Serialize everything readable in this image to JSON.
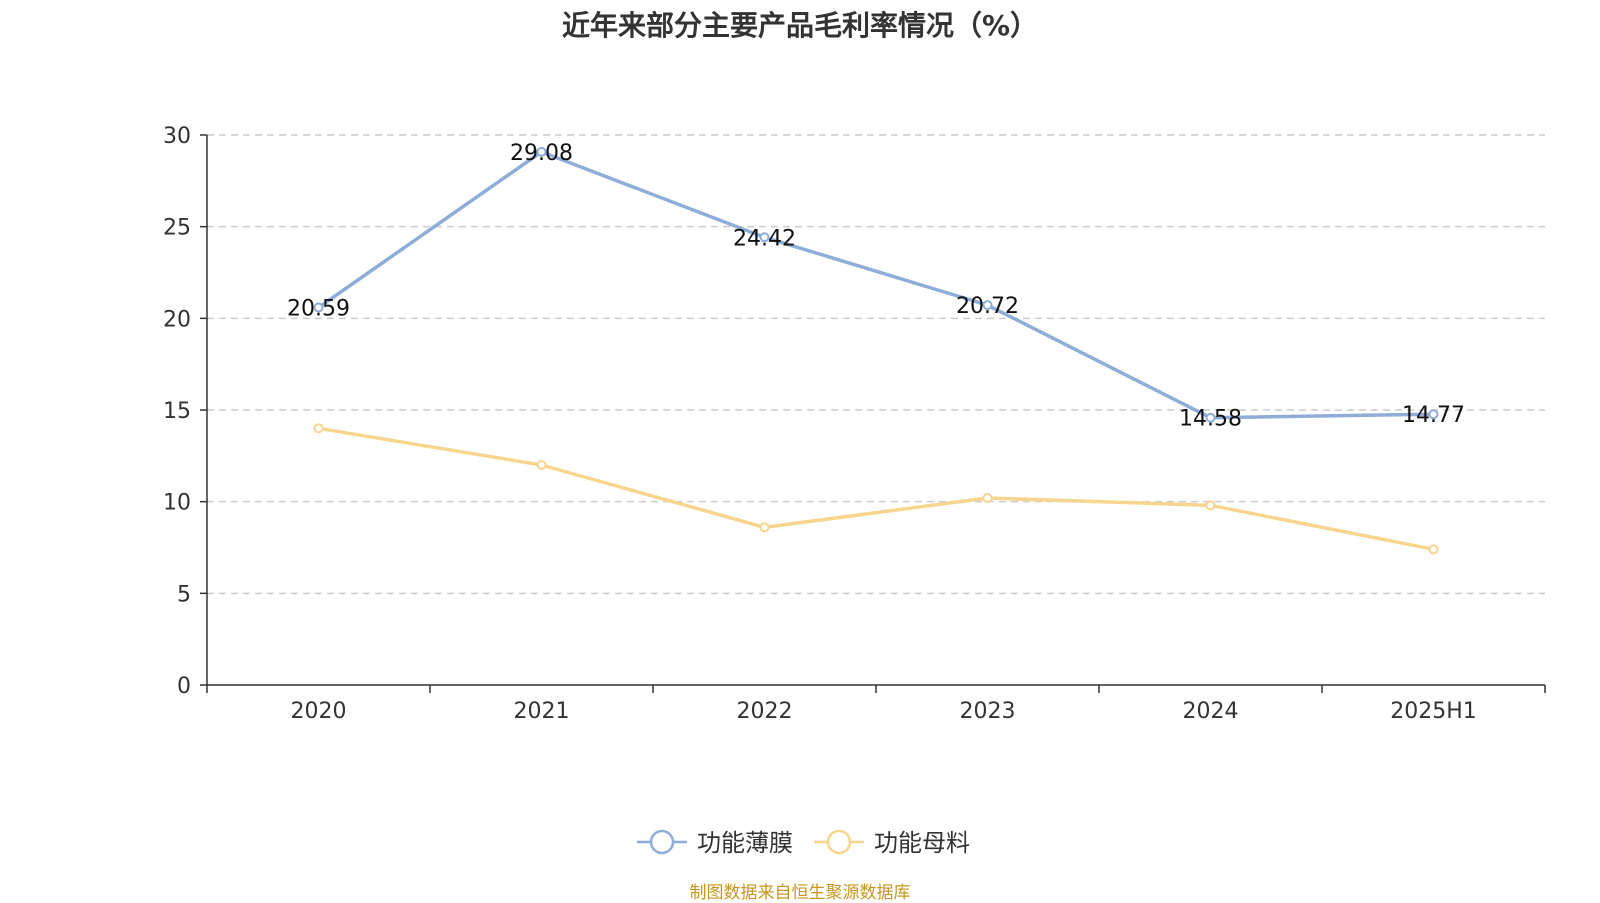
{
  "title": "近年来部分主要产品毛利率情况（%）",
  "source": "制图数据来自恒生聚源数据库",
  "chart_data": {
    "type": "line",
    "title": "近年来部分主要产品毛利率情况（%）",
    "categories": [
      "2020",
      "2021",
      "2022",
      "2023",
      "2024",
      "2025H1"
    ],
    "ylim": [
      0,
      30
    ],
    "yticks": [
      0,
      5,
      10,
      15,
      20,
      25,
      30
    ],
    "grid": true,
    "legend_position": "bottom",
    "series": [
      {
        "name": "功能薄膜",
        "color": "#8eadd8",
        "values": [
          20.59,
          29.08,
          24.42,
          20.72,
          14.58,
          14.77
        ],
        "show_labels": true
      },
      {
        "name": "功能母料",
        "color": "#f7d58f",
        "values": [
          14.0,
          12.0,
          8.6,
          10.2,
          9.8,
          7.4
        ],
        "show_labels": false
      }
    ]
  }
}
